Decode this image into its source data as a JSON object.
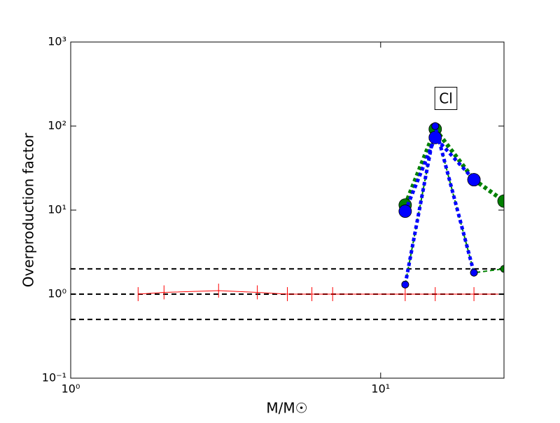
{
  "chart_data": {
    "type": "line",
    "xlabel": "M/M☉",
    "ylabel": "Overproduction factor",
    "annotation": "Cl",
    "xscale": "log",
    "yscale": "log",
    "xlim": [
      1,
      25
    ],
    "ylim": [
      0.1,
      1000
    ],
    "xticks": [
      {
        "value": 1,
        "label": "10⁰"
      },
      {
        "value": 10,
        "label": "10¹"
      }
    ],
    "yticks": [
      {
        "value": 0.1,
        "label": "10⁻¹"
      },
      {
        "value": 1,
        "label": "10⁰"
      },
      {
        "value": 10,
        "label": "10¹"
      },
      {
        "value": 100,
        "label": "10²"
      },
      {
        "value": 1000,
        "label": "10³"
      }
    ],
    "hlines": [
      2,
      1,
      0.5
    ],
    "series": [
      {
        "color": "#ff0000",
        "linestyle": "solid",
        "linewidth": 1,
        "marker": "tick",
        "x": [
          1.65,
          2,
          3,
          4,
          5,
          6,
          7,
          12,
          15,
          20,
          25
        ],
        "values": [
          1,
          1.05,
          1.1,
          1.05,
          1,
          1,
          1,
          1,
          1,
          1,
          1
        ]
      },
      {
        "color": "#008000",
        "linestyle": "dotted",
        "linewidth": 6,
        "marker": "big",
        "x": [
          12,
          15,
          20,
          25
        ],
        "values": [
          11.5,
          92,
          23,
          12.8
        ]
      },
      {
        "color": "#008000",
        "linestyle": "dashed",
        "linewidth": 2,
        "marker": "small",
        "x": [
          12,
          15,
          20,
          25
        ],
        "values": [
          1.3,
          100,
          1.8,
          2.0
        ]
      },
      {
        "color": "#0000ff",
        "linestyle": "dotted",
        "linewidth": 5,
        "marker": "big",
        "x": [
          12,
          15,
          20
        ],
        "values": [
          9.7,
          73,
          23
        ]
      },
      {
        "color": "#0000ff",
        "linestyle": "dotted",
        "linewidth": 5,
        "marker": "small",
        "x": [
          12,
          15,
          20
        ],
        "values": [
          1.3,
          100,
          1.8
        ]
      }
    ]
  }
}
